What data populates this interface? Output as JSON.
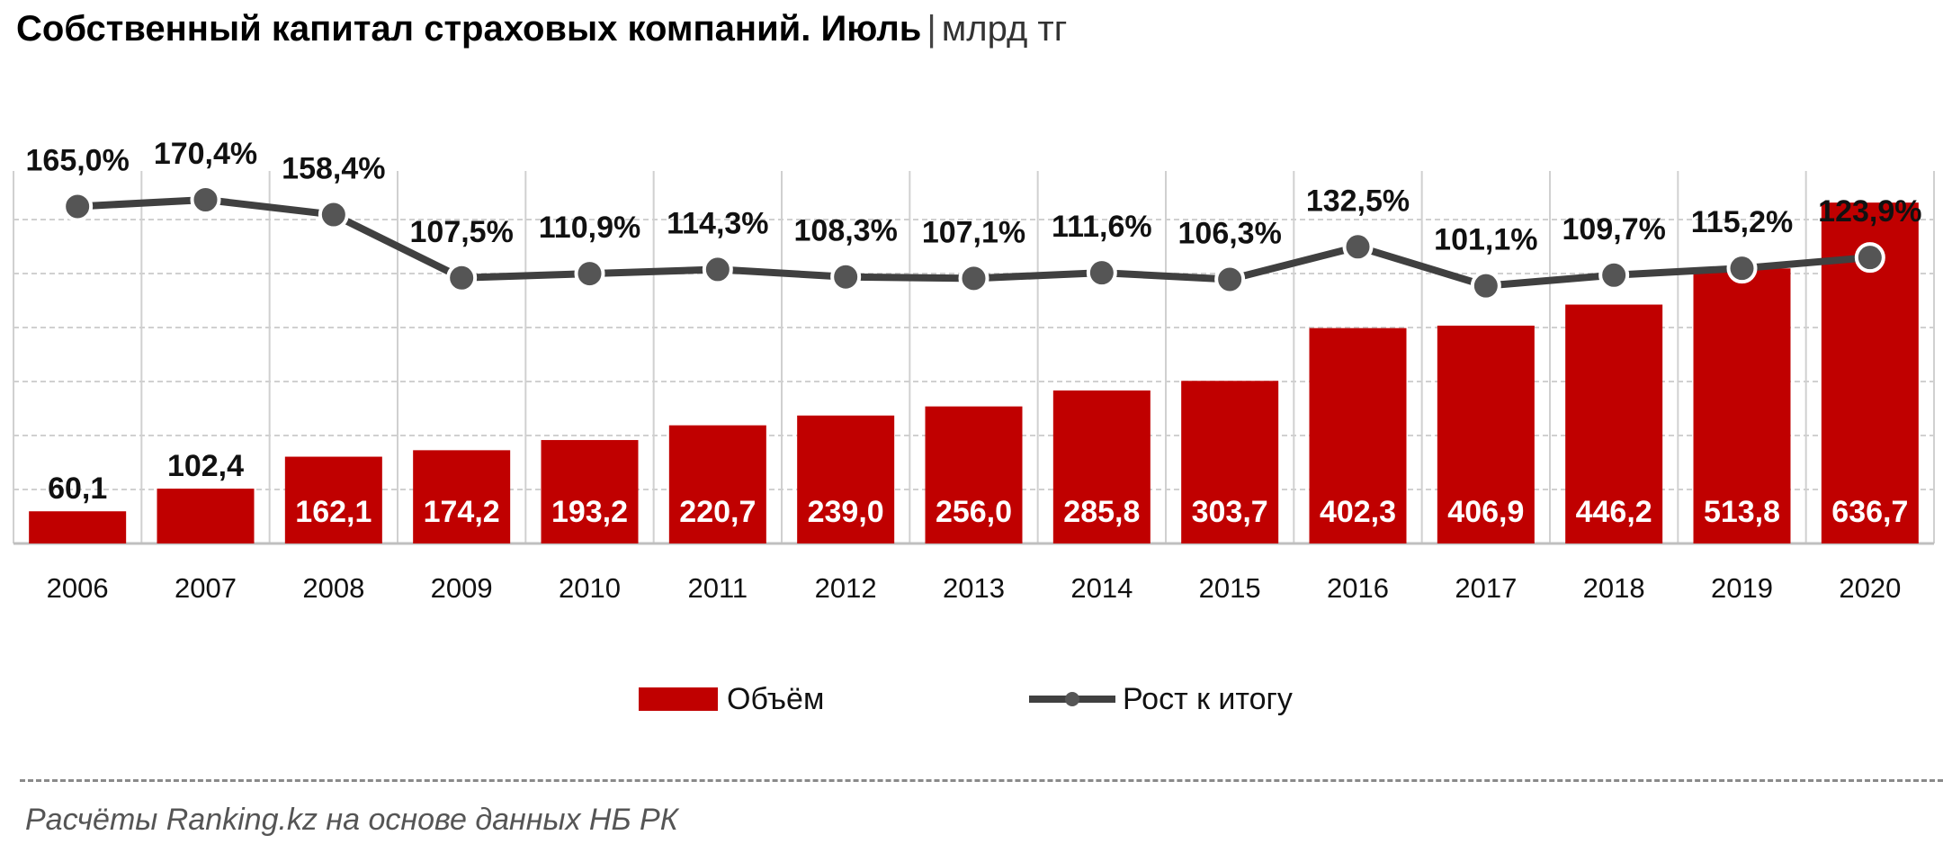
{
  "title": {
    "main": "Собственный капитал страховых компаний. Июль",
    "separator": "|",
    "unit": "млрд тг"
  },
  "source": "Расчёты Ranking.kz на основе данных НБ РК",
  "colors": {
    "bar": "#c00000",
    "line": "#404040",
    "marker": "#555555",
    "grid": "#d0d0d0"
  },
  "chart_data": {
    "type": "bar",
    "categories": [
      "2006",
      "2007",
      "2008",
      "2009",
      "2010",
      "2011",
      "2012",
      "2013",
      "2014",
      "2015",
      "2016",
      "2017",
      "2018",
      "2019",
      "2020"
    ],
    "series": [
      {
        "name": "Объём",
        "type": "bar",
        "values": [
          60.1,
          102.4,
          162.1,
          174.2,
          193.2,
          220.7,
          239.0,
          256.0,
          285.8,
          303.7,
          402.3,
          406.9,
          446.2,
          513.8,
          636.7
        ],
        "labels": [
          "60,1",
          "102,4",
          "162,1",
          "174,2",
          "193,2",
          "220,7",
          "239,0",
          "256,0",
          "285,8",
          "303,7",
          "402,3",
          "406,9",
          "446,2",
          "513,8",
          "636,7"
        ]
      },
      {
        "name": "Рост к итогу",
        "type": "line",
        "values": [
          165.0,
          170.4,
          158.4,
          107.5,
          110.9,
          114.3,
          108.3,
          107.1,
          111.6,
          106.3,
          132.5,
          101.1,
          109.7,
          115.2,
          123.9
        ],
        "labels": [
          "165,0%",
          "170,4%",
          "158,4%",
          "107,5%",
          "110,9%",
          "114,3%",
          "108,3%",
          "107,1%",
          "111,6%",
          "106,3%",
          "132,5%",
          "101,1%",
          "109,7%",
          "115,2%",
          "123,9%"
        ]
      }
    ],
    "legend": {
      "position": "bottom"
    },
    "grid": true
  }
}
